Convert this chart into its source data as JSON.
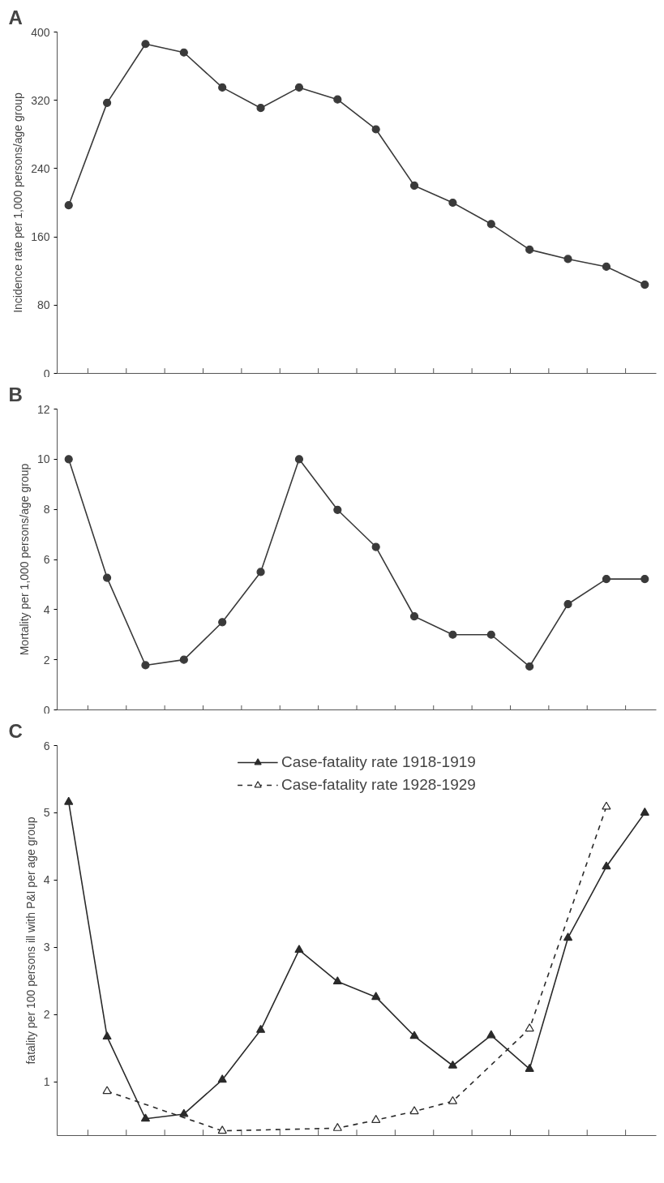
{
  "chart_data": [
    {
      "type": "line",
      "title": "A",
      "ylabel": "Incidence rate per 1,000 persons/age group",
      "marker": "circle",
      "line_style": "solid",
      "grid": false,
      "tick_labels": "y",
      "categories": [
        null,
        null,
        null,
        null,
        null,
        null,
        null,
        null,
        null,
        null,
        null,
        null,
        null,
        null,
        null,
        null
      ],
      "series": [
        {
          "color": "#3a3a3a",
          "values": [
            197,
            317,
            386,
            376,
            335,
            311,
            335,
            321,
            286,
            220,
            200,
            175,
            145,
            134,
            125,
            104
          ]
        }
      ],
      "ylim": [
        0,
        400
      ],
      "yticks": [
        0,
        80,
        160,
        240,
        320,
        400
      ]
    },
    {
      "type": "line",
      "title": "B",
      "ylabel": "Mortality per 1,000 persons/age group",
      "marker": "circle",
      "line_style": "solid",
      "grid": false,
      "tick_labels": "y",
      "categories": [
        null,
        null,
        null,
        null,
        null,
        null,
        null,
        null,
        null,
        null,
        null,
        null,
        null,
        null,
        null,
        null
      ],
      "series": [
        {
          "color": "#3a3a3a",
          "values": [
            10.0,
            5.27,
            1.78,
            2.0,
            3.5,
            5.5,
            10.0,
            7.98,
            6.5,
            3.73,
            3.0,
            3.0,
            1.73,
            4.22,
            5.22,
            5.22
          ]
        }
      ],
      "ylim": [
        0,
        12
      ],
      "yticks": [
        0,
        2,
        4,
        6,
        8,
        10,
        12
      ]
    },
    {
      "type": "line",
      "title": "C",
      "ylabel": "fatality per 100 persons ill with P&I per age group",
      "marker": "triangle",
      "grid": false,
      "tick_labels": "y",
      "legend": "top",
      "series": [
        {
          "name": "Case-fatality rate 1918-1919",
          "color": "#2a2a2a",
          "line_style": "solid",
          "values": [
            5.16,
            1.67,
            0.45,
            0.52,
            1.03,
            1.77,
            2.96,
            2.49,
            2.26,
            1.68,
            1.24,
            1.69,
            1.19,
            3.14,
            4.2,
            5.0
          ]
        },
        {
          "name": "Case-fatality rate 1928-1929",
          "color": "#2a2a2a",
          "line_style": "dashed",
          "values": [
            null,
            0.86,
            null,
            null,
            0.27,
            null,
            null,
            0.31,
            0.43,
            0.56,
            0.71,
            null,
            1.79,
            null,
            5.09,
            null
          ]
        }
      ],
      "categories": [
        null,
        null,
        null,
        null,
        null,
        null,
        null,
        null,
        null,
        null,
        null,
        null,
        null,
        null,
        null,
        null
      ],
      "ylim": [
        0.2,
        6
      ],
      "yticks": [
        1,
        2,
        3,
        4,
        5,
        6
      ]
    }
  ]
}
